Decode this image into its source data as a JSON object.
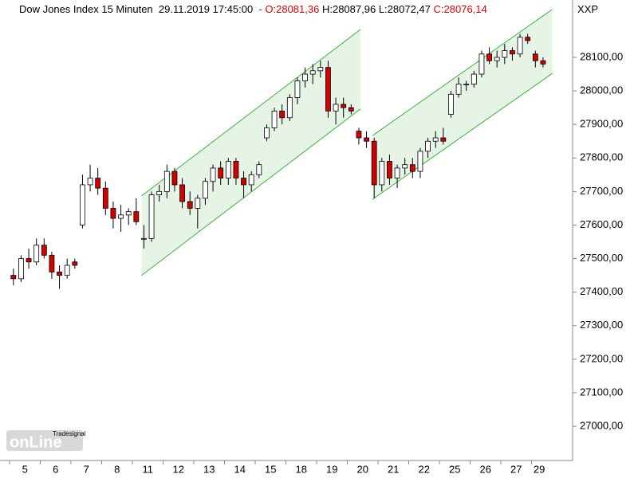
{
  "header": {
    "instrument": "Dow Jones Index 15 Minuten",
    "datetime": "29.11.2019 17:45:00",
    "open": "- O:28081,36",
    "high": "H:28087,96",
    "low": "L:28072,47",
    "close": "C:28076,14",
    "symbol": "XXP"
  },
  "logo": {
    "brand": "Tradesignal",
    "name": "onLine"
  },
  "chart_data": {
    "type": "candlestick",
    "categories": [
      null,
      null,
      "5",
      null,
      null,
      null,
      "6",
      null,
      null,
      null,
      "7",
      null,
      null,
      null,
      "8",
      null,
      null,
      null,
      "11",
      null,
      null,
      null,
      "12",
      null,
      null,
      null,
      "13",
      null,
      null,
      null,
      "14",
      null,
      null,
      null,
      "15",
      null,
      null,
      null,
      "18",
      null,
      null,
      null,
      "19",
      null,
      null,
      null,
      "20",
      null,
      null,
      null,
      "21",
      null,
      null,
      null,
      "22",
      null,
      null,
      null,
      "25",
      null,
      null,
      null,
      "26",
      null,
      null,
      null,
      "27",
      null,
      null,
      "29"
    ],
    "open": [
      27450,
      27440,
      27500,
      27490,
      27540,
      27510,
      27460,
      27450,
      27490,
      27600,
      27720,
      27740,
      27710,
      27650,
      27620,
      27630,
      27640,
      27560,
      27560,
      27690,
      27700,
      27760,
      27720,
      27670,
      27650,
      27680,
      27730,
      27770,
      27740,
      27790,
      27740,
      27720,
      27750,
      27860,
      27890,
      27940,
      27920,
      27980,
      28030,
      28050,
      28060,
      28070,
      27940,
      27960,
      27950,
      27880,
      27860,
      27850,
      27720,
      27790,
      27740,
      27770,
      27780,
      27760,
      27820,
      27850,
      27860,
      27930,
      27990,
      28020,
      28020,
      28050,
      28110,
      28090,
      28100,
      28120,
      28110,
      28160,
      28110,
      28090
    ],
    "high": [
      27470,
      27510,
      27530,
      27560,
      27560,
      27520,
      27480,
      27500,
      27500,
      27750,
      27780,
      27770,
      27730,
      27670,
      27660,
      27650,
      27680,
      27600,
      27700,
      27720,
      27780,
      27770,
      27740,
      27700,
      27690,
      27740,
      27780,
      27790,
      27800,
      27800,
      27760,
      27760,
      27790,
      27900,
      27950,
      27960,
      27990,
      28040,
      28070,
      28080,
      28090,
      28090,
      27980,
      27980,
      27960,
      27890,
      27880,
      27860,
      27800,
      27810,
      27780,
      27800,
      27800,
      27830,
      27860,
      27880,
      27890,
      28000,
      28040,
      28030,
      28060,
      28120,
      28130,
      28120,
      28140,
      28130,
      28170,
      28170,
      28120,
      28100
    ],
    "low": [
      27420,
      27430,
      27470,
      27480,
      27500,
      27440,
      27410,
      27440,
      27470,
      27590,
      27700,
      27690,
      27630,
      27590,
      27580,
      27600,
      27600,
      27530,
      27550,
      27670,
      27680,
      27700,
      27650,
      27630,
      27590,
      27660,
      27700,
      27720,
      27720,
      27720,
      27680,
      27700,
      27740,
      27850,
      27880,
      27900,
      27910,
      27960,
      28010,
      28020,
      28040,
      27920,
      27900,
      27920,
      27930,
      27840,
      27830,
      27680,
      27700,
      27720,
      27710,
      27750,
      27740,
      27740,
      27800,
      27830,
      27840,
      27920,
      27980,
      28000,
      28010,
      28040,
      28080,
      28070,
      28080,
      28090,
      28100,
      28140,
      28070,
      28070
    ],
    "close": [
      27440,
      27500,
      27490,
      27540,
      27510,
      27460,
      27450,
      27480,
      27480,
      27720,
      27740,
      27710,
      27650,
      27620,
      27630,
      27640,
      27610,
      27560,
      27690,
      27700,
      27760,
      27720,
      27670,
      27650,
      27680,
      27730,
      27770,
      27740,
      27790,
      27740,
      27720,
      27750,
      27780,
      27890,
      27940,
      27920,
      27980,
      28030,
      28050,
      28060,
      28070,
      27940,
      27960,
      27950,
      27940,
      27860,
      27850,
      27720,
      27790,
      27740,
      27770,
      27780,
      27760,
      27820,
      27850,
      27860,
      27850,
      27990,
      28020,
      28020,
      28050,
      28110,
      28090,
      28100,
      28120,
      28110,
      28160,
      28150,
      28090,
      28080
    ],
    "up_color": "#ffffff",
    "down_color": "#d40000",
    "channel_color": "#3cb43c",
    "channel_fill": "#e6f4e6",
    "channels": [
      {
        "x": [
          17.2,
          45.7
        ],
        "lower": [
          27450,
          27946
        ],
        "upper": [
          27687,
          28183
        ]
      },
      {
        "x": [
          47.3,
          70.7
        ],
        "lower": [
          27677,
          28052
        ],
        "upper": [
          27867,
          28243
        ]
      }
    ],
    "ylim": [
      26898,
      28271
    ],
    "yticks": [
      {
        "value": 27000,
        "label": "27000,00"
      },
      {
        "value": 27100,
        "label": "27100,00"
      },
      {
        "value": 27200,
        "label": "27200,00"
      },
      {
        "value": 27300,
        "label": "27300,00"
      },
      {
        "value": 27400,
        "label": "27400,00"
      },
      {
        "value": 27500,
        "label": "27500,00"
      },
      {
        "value": 27600,
        "label": "27600,00"
      },
      {
        "value": 27700,
        "label": "27700,00"
      },
      {
        "value": 27800,
        "label": "27800,00"
      },
      {
        "value": 27900,
        "label": "27900,00"
      },
      {
        "value": 28000,
        "label": "28000,00"
      },
      {
        "value": 28100,
        "label": "28100,00"
      }
    ]
  }
}
